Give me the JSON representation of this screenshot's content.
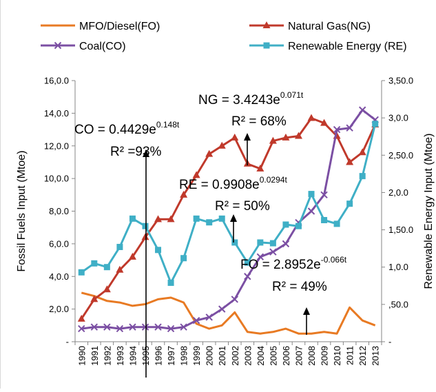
{
  "chart_data": {
    "type": "line",
    "categories": [
      "1990",
      "1991",
      "1992",
      "1993",
      "1994",
      "1995",
      "1996",
      "1997",
      "1998",
      "1999",
      "2000",
      "2001",
      "2002",
      "2003",
      "2004",
      "2005",
      "2006",
      "2007",
      "2008",
      "2009",
      "2010",
      "2011",
      "2012",
      "2013"
    ],
    "y_left": {
      "label": "Fossil Fuels Input (Mtoe)",
      "range": [
        0,
        16
      ],
      "ticks": [
        0,
        2,
        4,
        6,
        8,
        10,
        12,
        14,
        16
      ],
      "tick_labels": [
        "-",
        "2,0.0",
        "4,0.0",
        "6,0.0",
        "8,0.0",
        "10,0.0",
        "12,0.0",
        "14,0.0",
        "16,0.0"
      ]
    },
    "y_right": {
      "label": "Renewable Energy Input (Mtoe)",
      "range": [
        0,
        3.5
      ],
      "ticks": [
        0,
        0.5,
        1.0,
        1.5,
        2.0,
        2.5,
        3.0,
        3.5
      ],
      "tick_labels": [
        "-",
        ",50.0",
        "1,0.0",
        "1,50.0",
        "2,0.0",
        "2,50.0",
        "3,0.0",
        "3,50.0"
      ]
    },
    "legend_position": "top",
    "grid": false,
    "series": [
      {
        "name": "MFO/Diesel(FO)",
        "axis": "left",
        "color": "#E87A23",
        "marker": "none",
        "values": [
          3.0,
          2.8,
          2.5,
          2.4,
          2.2,
          2.3,
          2.6,
          2.7,
          2.4,
          1.1,
          0.8,
          1.0,
          1.8,
          0.6,
          0.5,
          0.6,
          0.8,
          0.5,
          0.5,
          0.6,
          0.5,
          2.1,
          1.3,
          1.0
        ]
      },
      {
        "name": "Natural Gas(NG)",
        "axis": "left",
        "color": "#C0392B",
        "marker": "triangle",
        "values": [
          1.4,
          2.6,
          3.2,
          4.4,
          5.2,
          6.4,
          7.5,
          7.5,
          9.0,
          10.2,
          11.5,
          12.0,
          12.5,
          10.9,
          10.6,
          12.3,
          12.5,
          12.6,
          13.7,
          13.4,
          12.6,
          11.0,
          11.6,
          13.3
        ]
      },
      {
        "name": "Coal(CO)",
        "axis": "left",
        "color": "#7B4FA3",
        "marker": "x",
        "values": [
          0.8,
          0.9,
          0.9,
          0.8,
          0.9,
          0.9,
          0.9,
          0.8,
          0.9,
          1.3,
          1.5,
          2.0,
          2.6,
          4.0,
          5.2,
          5.5,
          6.0,
          7.3,
          8.0,
          9.0,
          13.0,
          13.1,
          14.2,
          13.6
        ]
      },
      {
        "name": "Renewable Energy (RE)",
        "axis": "right",
        "color": "#3FAFC6",
        "marker": "square",
        "values": [
          0.93,
          1.05,
          1.0,
          1.27,
          1.65,
          1.55,
          1.23,
          0.79,
          1.12,
          1.65,
          1.6,
          1.65,
          1.33,
          1.06,
          1.33,
          1.32,
          1.57,
          1.55,
          1.98,
          1.63,
          1.58,
          1.85,
          2.22,
          2.92
        ]
      }
    ],
    "annotations": [
      {
        "id": "ng",
        "base": "NG = 3.4243e",
        "sup": "0.071t",
        "r2": "R² = 68%"
      },
      {
        "id": "co",
        "base": "CO = 0.4429e",
        "sup": "0.148t",
        "r2": "R² =93%"
      },
      {
        "id": "re",
        "base": "RE = 0.9908e",
        "sup": "0.0294t",
        "r2": "R² = 50%"
      },
      {
        "id": "fo",
        "base": "FO = 2.8952e",
        "sup": "-0.066t",
        "r2": "R² = 49%"
      }
    ]
  }
}
